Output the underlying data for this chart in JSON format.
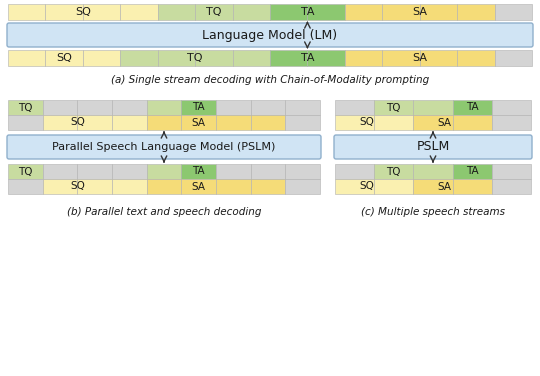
{
  "colors": {
    "yellow": "#F5DC78",
    "yellow_light": "#FAF0B0",
    "green_light": "#C8DCA0",
    "green_dark": "#8CC870",
    "gray": "#D4D4D4",
    "box_fill": "#D0E4F4",
    "box_edge": "#90B0CC",
    "white": "#FFFFFF",
    "text": "#1a1a1a",
    "arrow": "#333333"
  },
  "caption_a": "(a) Single stream decoding with Chain-of-Modality prompting",
  "caption_b": "(b) Parallel text and speech decoding",
  "caption_c": "(c) Multiple speech streams",
  "lm_label": "Language Model (LM)",
  "pslm_label": "Parallel Speech Language Model (PSLM)",
  "pslm2_label": "PSLM"
}
